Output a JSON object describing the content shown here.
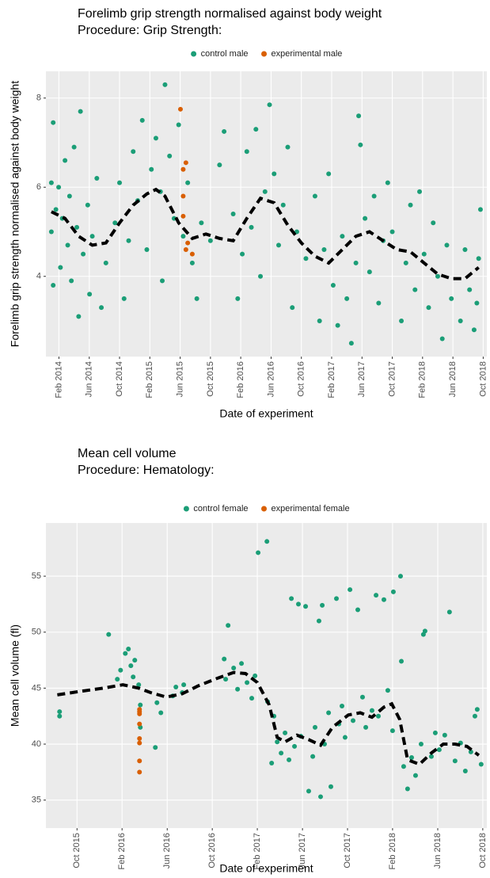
{
  "chart_data": [
    {
      "type": "scatter",
      "title": "Forelimb grip strength normalised against body weight",
      "subtitle": "Procedure: Grip Strength:",
      "x_label": "Date of experiment",
      "y_label": "Forelimb grip strength normalised against body weight",
      "grid": true,
      "xlim": [
        2013.94,
        2018.79
      ],
      "ylim": [
        2.2,
        8.6
      ],
      "xticks": [
        {
          "value": 2014.083,
          "label": "Feb 2014"
        },
        {
          "value": 2014.417,
          "label": "Jun 2014"
        },
        {
          "value": 2014.75,
          "label": "Oct 2014"
        },
        {
          "value": 2015.083,
          "label": "Feb 2015"
        },
        {
          "value": 2015.417,
          "label": "Jun 2015"
        },
        {
          "value": 2015.75,
          "label": "Oct 2015"
        },
        {
          "value": 2016.083,
          "label": "Feb 2016"
        },
        {
          "value": 2016.417,
          "label": "Jun 2016"
        },
        {
          "value": 2016.75,
          "label": "Oct 2016"
        },
        {
          "value": 2017.083,
          "label": "Feb 2017"
        },
        {
          "value": 2017.417,
          "label": "Jun 2017"
        },
        {
          "value": 2017.75,
          "label": "Oct 2017"
        },
        {
          "value": 2018.083,
          "label": "Feb 2018"
        },
        {
          "value": 2018.417,
          "label": "Jun 2018"
        },
        {
          "value": 2018.75,
          "label": "Oct 2018"
        }
      ],
      "yticks": [
        4,
        6,
        8
      ],
      "series": [
        {
          "name": "control male",
          "color": "#1b9e77",
          "x": [
            2014.0,
            2014.0,
            2014.02,
            2014.02,
            2014.05,
            2014.08,
            2014.1,
            2014.12,
            2014.15,
            2014.18,
            2014.2,
            2014.22,
            2014.25,
            2014.28,
            2014.3,
            2014.32,
            2014.35,
            2014.4,
            2014.42,
            2014.45,
            2014.5,
            2014.55,
            2014.6,
            2014.7,
            2014.75,
            2014.8,
            2014.85,
            2014.9,
            2014.95,
            2015.0,
            2015.05,
            2015.1,
            2015.15,
            2015.2,
            2015.22,
            2015.25,
            2015.3,
            2015.35,
            2015.4,
            2015.45,
            2015.5,
            2015.55,
            2015.6,
            2015.65,
            2015.75,
            2015.85,
            2015.9,
            2016.0,
            2016.05,
            2016.1,
            2016.15,
            2016.2,
            2016.25,
            2016.3,
            2016.35,
            2016.4,
            2016.45,
            2016.5,
            2016.55,
            2016.6,
            2016.65,
            2016.7,
            2016.8,
            2016.9,
            2016.95,
            2017.0,
            2017.05,
            2017.1,
            2017.15,
            2017.2,
            2017.25,
            2017.3,
            2017.35,
            2017.38,
            2017.4,
            2017.45,
            2017.5,
            2017.55,
            2017.6,
            2017.65,
            2017.7,
            2017.75,
            2017.85,
            2017.9,
            2017.95,
            2018.0,
            2018.05,
            2018.1,
            2018.15,
            2018.2,
            2018.25,
            2018.3,
            2018.35,
            2018.4,
            2018.5,
            2018.55,
            2018.6,
            2018.65,
            2018.7,
            2018.72,
            2018.68
          ],
          "values": [
            5.0,
            6.1,
            7.45,
            3.8,
            5.5,
            6.0,
            4.2,
            5.3,
            6.6,
            4.7,
            5.8,
            3.9,
            6.9,
            5.1,
            3.1,
            7.7,
            4.5,
            5.6,
            3.6,
            4.9,
            6.2,
            3.3,
            4.3,
            5.2,
            6.1,
            3.5,
            4.8,
            6.8,
            5.7,
            7.5,
            4.6,
            6.4,
            7.1,
            5.9,
            3.9,
            8.3,
            6.7,
            5.3,
            7.4,
            4.9,
            6.1,
            4.3,
            3.5,
            5.2,
            4.8,
            6.5,
            7.25,
            5.4,
            3.5,
            4.5,
            6.8,
            5.1,
            7.3,
            4.0,
            5.9,
            7.85,
            6.3,
            4.7,
            5.6,
            6.9,
            3.3,
            5.0,
            4.4,
            5.8,
            3.0,
            4.6,
            6.3,
            3.8,
            2.9,
            4.9,
            3.5,
            2.5,
            4.3,
            7.6,
            6.95,
            5.3,
            4.1,
            5.8,
            3.4,
            4.8,
            6.1,
            5.0,
            3.0,
            4.3,
            5.6,
            3.7,
            5.9,
            4.5,
            3.3,
            5.2,
            4.0,
            2.6,
            4.7,
            3.5,
            3.0,
            4.6,
            3.7,
            2.8,
            4.4,
            5.5,
            3.4
          ]
        },
        {
          "name": "experimental male",
          "color": "#d95f02",
          "x": [
            2015.42,
            2015.45,
            2015.48,
            2015.45,
            2015.45,
            2015.5,
            2015.48,
            2015.55
          ],
          "values": [
            7.75,
            6.4,
            6.55,
            5.8,
            5.35,
            4.75,
            4.6,
            4.5
          ]
        }
      ],
      "trend": {
        "color": "#000000",
        "x": [
          2014.0,
          2014.15,
          2014.3,
          2014.45,
          2014.6,
          2014.75,
          2014.9,
          2015.05,
          2015.15,
          2015.25,
          2015.4,
          2015.55,
          2015.7,
          2015.85,
          2016.0,
          2016.15,
          2016.3,
          2016.45,
          2016.6,
          2016.75,
          2016.9,
          2017.05,
          2017.2,
          2017.35,
          2017.5,
          2017.65,
          2017.8,
          2017.95,
          2018.1,
          2018.25,
          2018.4,
          2018.55,
          2018.7
        ],
        "values": [
          5.45,
          5.3,
          4.9,
          4.7,
          4.75,
          5.2,
          5.6,
          5.85,
          5.95,
          5.8,
          5.2,
          4.85,
          4.95,
          4.85,
          4.8,
          5.3,
          5.75,
          5.65,
          5.15,
          4.75,
          4.45,
          4.3,
          4.6,
          4.9,
          5.0,
          4.8,
          4.6,
          4.55,
          4.3,
          4.05,
          3.95,
          3.95,
          4.2
        ]
      }
    },
    {
      "type": "scatter",
      "title": "Mean cell volume",
      "subtitle": "Procedure: Hematology:",
      "x_label": "Date of experiment",
      "y_label": "Mean cell volume (fl)",
      "grid": true,
      "xlim": [
        2015.52,
        2018.78
      ],
      "ylim": [
        32.5,
        59.75
      ],
      "xticks": [
        {
          "value": 2015.75,
          "label": "Oct 2015"
        },
        {
          "value": 2016.083,
          "label": "Feb 2016"
        },
        {
          "value": 2016.417,
          "label": "Jun 2016"
        },
        {
          "value": 2016.75,
          "label": "Oct 2016"
        },
        {
          "value": 2017.083,
          "label": "Feb 2017"
        },
        {
          "value": 2017.417,
          "label": "Jun 2017"
        },
        {
          "value": 2017.75,
          "label": "Oct 2017"
        },
        {
          "value": 2018.083,
          "label": "Feb 2018"
        },
        {
          "value": 2018.417,
          "label": "Jun 2018"
        },
        {
          "value": 2018.75,
          "label": "Oct 2018"
        }
      ],
      "yticks": [
        35,
        40,
        45,
        50,
        55
      ],
      "series": [
        {
          "name": "control female",
          "color": "#1b9e77",
          "x": [
            2015.621,
            2015.621,
            2015.984,
            2016.048,
            2016.072,
            2016.107,
            2016.13,
            2016.148,
            2016.165,
            2016.177,
            2016.206,
            2016.218,
            2016.218,
            2016.329,
            2016.341,
            2016.37,
            2016.458,
            2016.481,
            2016.528,
            2016.539,
            2016.867,
            2016.838,
            2016.849,
            2016.908,
            2016.937,
            2016.966,
            2017.007,
            2017.042,
            2017.066,
            2017.089,
            2017.154,
            2017.159,
            2017.206,
            2017.189,
            2017.23,
            2017.259,
            2017.288,
            2017.317,
            2017.335,
            2017.358,
            2017.387,
            2017.405,
            2017.463,
            2017.44,
            2017.493,
            2017.51,
            2017.551,
            2017.539,
            2017.563,
            2017.58,
            2017.627,
            2017.61,
            2017.668,
            2017.686,
            2017.709,
            2017.732,
            2017.768,
            2017.791,
            2017.826,
            2017.861,
            2017.885,
            2017.931,
            2017.961,
            2017.978,
            2018.019,
            2018.048,
            2018.083,
            2018.089,
            2018.142,
            2018.148,
            2018.165,
            2018.194,
            2018.224,
            2018.253,
            2018.294,
            2018.311,
            2018.323,
            2018.37,
            2018.399,
            2018.428,
            2018.469,
            2018.504,
            2018.545,
            2018.586,
            2018.621,
            2018.662,
            2018.692,
            2018.709,
            2018.738
          ],
          "values": [
            42.5,
            42.9,
            49.8,
            45.8,
            46.6,
            48.1,
            48.5,
            47.0,
            46.0,
            47.5,
            45.3,
            43.5,
            41.5,
            39.7,
            43.7,
            42.8,
            44.3,
            45.1,
            44.6,
            45.3,
            50.6,
            47.6,
            45.8,
            46.8,
            44.9,
            47.2,
            45.5,
            44.1,
            46.1,
            57.1,
            58.1,
            43.8,
            42.5,
            38.3,
            40.2,
            39.2,
            41.0,
            38.6,
            53.0,
            39.8,
            52.5,
            40.7,
            35.8,
            52.3,
            38.9,
            41.5,
            35.3,
            51.0,
            52.4,
            40.0,
            36.2,
            42.8,
            53.0,
            41.8,
            43.4,
            40.6,
            53.8,
            42.1,
            52.0,
            44.2,
            41.5,
            43.0,
            53.3,
            42.5,
            52.9,
            44.8,
            41.2,
            53.6,
            55.0,
            47.4,
            38.0,
            36.0,
            38.8,
            37.2,
            40.0,
            49.8,
            50.1,
            38.9,
            41.0,
            39.5,
            40.8,
            51.8,
            38.5,
            40.1,
            37.6,
            39.3,
            42.5,
            43.1,
            38.2
          ]
        },
        {
          "name": "experimental female",
          "color": "#d95f02",
          "x": [
            2016.212,
            2016.212,
            2016.212,
            2016.212,
            2016.212,
            2016.212,
            2016.212,
            2016.212
          ],
          "values": [
            43.1,
            42.7,
            41.8,
            40.5,
            40.1,
            38.5,
            37.5,
            42.9
          ]
        }
      ],
      "trend": {
        "color": "#000000",
        "x": [
          2015.604,
          2015.768,
          2015.943,
          2016.089,
          2016.206,
          2016.294,
          2016.411,
          2016.528,
          2016.645,
          2016.791,
          2016.908,
          2016.996,
          2017.083,
          2017.171,
          2017.23,
          2017.288,
          2017.376,
          2017.463,
          2017.551,
          2017.639,
          2017.756,
          2017.844,
          2017.931,
          2018.019,
          2018.077,
          2018.136,
          2018.194,
          2018.282,
          2018.37,
          2018.458,
          2018.545,
          2018.633,
          2018.721
        ],
        "values": [
          44.4,
          44.7,
          45.0,
          45.3,
          45.0,
          44.6,
          44.2,
          44.5,
          45.2,
          45.9,
          46.4,
          46.3,
          45.5,
          43.5,
          40.6,
          40.2,
          40.8,
          40.4,
          39.9,
          41.5,
          42.6,
          42.8,
          42.4,
          43.3,
          43.6,
          42.2,
          38.6,
          38.2,
          39.2,
          40.0,
          40.0,
          39.8,
          39.0
        ]
      }
    }
  ]
}
